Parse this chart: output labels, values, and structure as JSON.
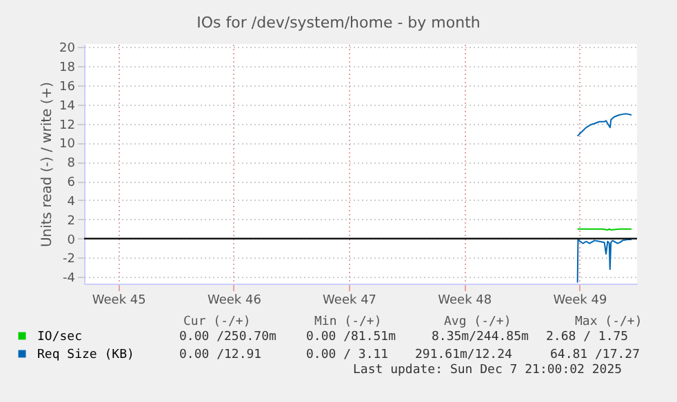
{
  "chart_data": {
    "type": "line",
    "title": "IOs for /dev/system/home - by month",
    "ylabel": "Units read (-) / write (+)",
    "xlim": [
      "2025-11-04T10:00",
      "2025-12-08T00:00"
    ],
    "xticks": [
      {
        "value": "2025-11-06T12:00",
        "label": "Week 45"
      },
      {
        "value": "2025-11-13T12:00",
        "label": "Week 46"
      },
      {
        "value": "2025-11-20T12:00",
        "label": "Week 47"
      },
      {
        "value": "2025-11-27T12:00",
        "label": "Week 48"
      },
      {
        "value": "2025-12-04T12:00",
        "label": "Week 49"
      }
    ],
    "ylim": [
      -4.7,
      20.3
    ],
    "yticks": [
      -4,
      -2,
      0,
      2,
      4,
      6,
      8,
      10,
      12,
      14,
      16,
      18,
      20
    ],
    "grid": true,
    "legend": "bottom",
    "series": [
      {
        "name": "IO/sec",
        "color": "#00cc00",
        "x": [
          "2025-12-04T09:15",
          "2025-12-04T22:00",
          "2025-12-05T10:00",
          "2025-12-05T22:00",
          "2025-12-06T05:10",
          "2025-12-06T07:35",
          "2025-12-06T10:00",
          "2025-12-06T22:00",
          "2025-12-07T10:00",
          "2025-12-07T16:00"
        ],
        "values": [
          1.0,
          1.0,
          1.0,
          1.0,
          0.9,
          1.0,
          0.9,
          1.0,
          1.0,
          1.0
        ]
      },
      {
        "name": "Req Size (KB)",
        "color": "#0066b3",
        "x": [
          "2025-12-04T09:15",
          "2025-12-04T14:50",
          "2025-12-04T22:00",
          "2025-12-05T05:10",
          "2025-12-05T10:00",
          "2025-12-05T17:10",
          "2025-12-06T00:25",
          "2025-12-06T02:50",
          "2025-12-06T05:10",
          "2025-12-06T08:50",
          "2025-12-06T10:00",
          "2025-12-06T14:50",
          "2025-12-06T22:00",
          "2025-12-07T05:10",
          "2025-12-07T10:00",
          "2025-12-07T16:00"
        ],
        "values": [
          10.7,
          11.1,
          11.6,
          11.9,
          12.0,
          12.2,
          12.2,
          12.3,
          12.0,
          11.6,
          12.4,
          12.7,
          12.9,
          13.0,
          13.0,
          12.9
        ]
      },
      {
        "color": "#0066b3",
        "x": [
          "2025-12-04T09:15",
          "2025-12-04T10:00",
          "2025-12-04T11:10",
          "2025-12-04T17:10",
          "2025-12-04T22:00",
          "2025-12-05T02:50",
          "2025-12-05T10:00",
          "2025-12-05T17:10",
          "2025-12-06T00:25",
          "2025-12-06T02:50",
          "2025-12-06T05:10",
          "2025-12-06T07:35",
          "2025-12-06T08:35",
          "2025-12-06T10:00",
          "2025-12-06T12:25",
          "2025-12-06T19:35",
          "2025-12-06T23:10",
          "2025-12-07T02:50",
          "2025-12-07T10:00",
          "2025-12-07T16:00"
        ],
        "values": [
          -4.6,
          -0.1,
          -0.2,
          -0.5,
          -0.3,
          -0.5,
          -0.2,
          -0.3,
          -0.4,
          -1.6,
          -0.3,
          -0.5,
          -3.2,
          -0.4,
          -0.2,
          -0.5,
          -0.4,
          -0.2,
          -0.1,
          -0.1
        ]
      }
    ],
    "ref_lines": [
      {
        "axis": "y",
        "value": 0,
        "color": "#000000"
      }
    ],
    "annotations": [
      "Cur (-/+)",
      "Min (-/+)",
      "Avg (-/+)",
      "Max (-/+)",
      "0.00 /250.70m",
      "0.00 /81.51m",
      "8.35m/244.85m",
      "2.68 / 1.75",
      "0.00 /12.91",
      "0.00 / 3.11",
      "291.61m/12.24",
      "64.81 /17.27",
      "Last update: Sun Dec  7 21:00:02 2025"
    ]
  }
}
